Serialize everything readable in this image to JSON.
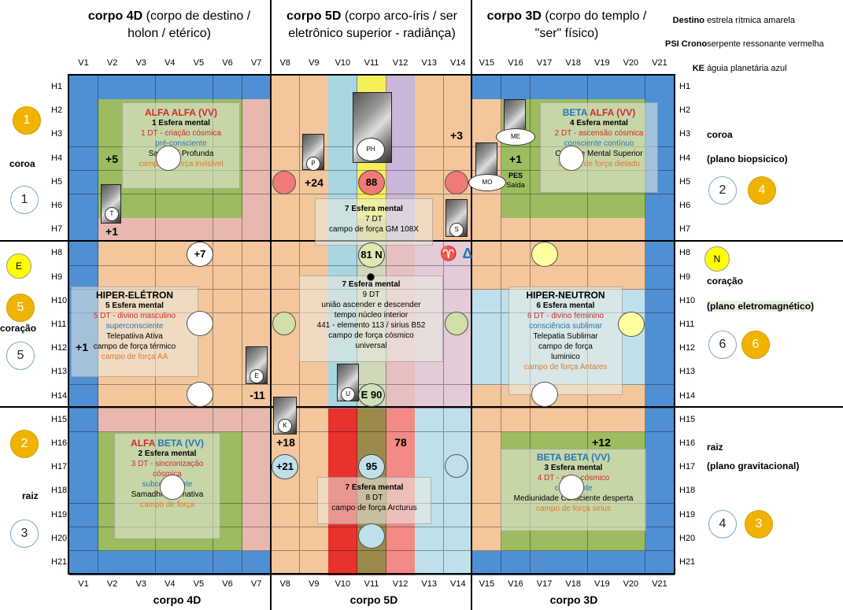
{
  "headers": {
    "h4d": {
      "bold": "corpo 4D",
      "rest1": " (corpo de destino /",
      "line2": "holon / etérico)"
    },
    "h5d": {
      "bold": "corpo 5D",
      "rest1": " (corpo arco-íris / ser",
      "line2": "eletrônico superior - radiânça)"
    },
    "h3d": {
      "bold": "corpo 3D",
      "rest1": " (corpo do templo /",
      "line2": "\"ser\" físico)"
    }
  },
  "legend": [
    {
      "key": "Destino",
      "value": "estrela rítmica amarela"
    },
    {
      "key": "PSI Crono",
      "value": "serpente ressonante vermelha"
    },
    {
      "key": "KE",
      "value": "águia planetária azul"
    }
  ],
  "bottom": {
    "b4d": "corpo 4D",
    "b5d": "corpo 5D",
    "b3d": "corpo 3D"
  },
  "columns": [
    "V1",
    "V2",
    "V3",
    "V4",
    "V5",
    "V6",
    "V7",
    "V8",
    "V9",
    "V10",
    "V11",
    "V12",
    "V13",
    "V14",
    "V15",
    "V16",
    "V17",
    "V18",
    "V19",
    "V20",
    "V21"
  ],
  "rows": [
    "H1",
    "H2",
    "H3",
    "H4",
    "H5",
    "H6",
    "H7",
    "H8",
    "H9",
    "H10",
    "H11",
    "H12",
    "H13",
    "H14",
    "H15",
    "H16",
    "H17",
    "H18",
    "H19",
    "H20",
    "H21"
  ],
  "left": {
    "c1y": "1",
    "coroa": "coroa",
    "c1w": "1",
    "ce": "E",
    "c5y": "5",
    "coracao": "coração",
    "c5w": "5",
    "c2y": "2",
    "raiz": "raiz",
    "c3w": "3"
  },
  "right": {
    "coroa": "coroa",
    "coroa_plane": "(plano biopsicico)",
    "r2w": "2",
    "r4y": "4",
    "rn": "N",
    "coracao": "coração",
    "coracao_plane": "(plano eletromagnético)",
    "r6w": "6",
    "r6y": "6",
    "raiz": "raiz",
    "raiz_plane": "(plano gravitacional)",
    "r4w": "4",
    "r3y": "3"
  },
  "panels": {
    "alfa_alfa": {
      "t1": "ALFA ",
      "t2": "ALFA",
      "t3": " (VV)",
      "l1": "1 Esfera mental",
      "l2": "1 DT - criação cósmica",
      "l3": "pré-consciente",
      "l4": "Samadhi Profunda",
      "l5": "campo de força invisível"
    },
    "beta_alfa": {
      "t1": "BETA ",
      "t2": "ALFA",
      "t3": " (VV)",
      "l1": "4 Esfera mental",
      "l2": "2 DT - ascensão cósmica",
      "l3": "consciente contínuo",
      "l4": "Controle Mental Superior",
      "l5": "campo de força dielado"
    },
    "esf7_top": {
      "l1": "7 Esfera mental",
      "l2": "7 DT",
      "l3": "campo de força GM 108X"
    },
    "hiper_eletron": {
      "t": "HIPER-ELÉTRON",
      "l1": "5 Esfera mental",
      "l2": "5 DT - divino masculino",
      "l3": "superconsciente",
      "l4": "Telepatiiva Ativa",
      "l5": "campo de força térmico",
      "l6": "campo de força AA"
    },
    "center": {
      "l1": "7 Esfera mental",
      "l2": "9 DT",
      "l3": "união ascender e descender",
      "l4": "tempo núcleo interior",
      "l5": "441 - elemento 113 / sirius B52",
      "l6": "campo de força cósmico",
      "l7": "universal"
    },
    "hiper_neutron": {
      "t": "HIPER-NEUTRON",
      "l1": "6 Esfera mental",
      "l2": "6 DT - divino feminino",
      "l3": "consciência sublimar",
      "l4": "Telepatia Sublimar",
      "l5": "campo de força",
      "l6": "luminico",
      "l7": "campo de força Antares"
    },
    "alfa_beta": {
      "t1": "ALFA ",
      "t2": "BETA",
      "t3": " (VV)",
      "l1": "2 Esfera mental",
      "l2": "3 DT - sincronização",
      "l3": "cósmica",
      "l4": "subconsciente",
      "l5": "Samadhi Informativa",
      "l6": "campo de força"
    },
    "esf7_bot": {
      "l1": "7 Esfera mental",
      "l2": "8 DT",
      "l3": "campo de força Arcturus"
    },
    "beta_beta": {
      "t": "BETA BETA (VV)",
      "l1": "3 Esfera mental",
      "l2": "4 DT - cubo cósmico",
      "l3": "consciente",
      "l4": "Mediunidade Consciente desperta",
      "l5": "campo de força sirius"
    }
  },
  "numbers": {
    "n5": "+5",
    "n1a": "+1",
    "n7": "+7",
    "n24": "+24",
    "n3": "+3",
    "n1b": "+1",
    "n1c": "+1",
    "n11": "-11",
    "n18": "+18",
    "n21": "+21",
    "n78": "78",
    "n12": "+12",
    "n88": "88",
    "n81": "81 N",
    "n90": "E 90",
    "n95": "95",
    "pes": "PES",
    "saida": "Saída"
  },
  "tags": {
    "T": "T",
    "P": "P",
    "PH": "PH",
    "S": "S",
    "ME": "ME",
    "MO": "MO",
    "E": "E",
    "U": "U",
    "K": "K"
  },
  "symbols": {
    "aries": "♈",
    "delta": "Δ"
  }
}
